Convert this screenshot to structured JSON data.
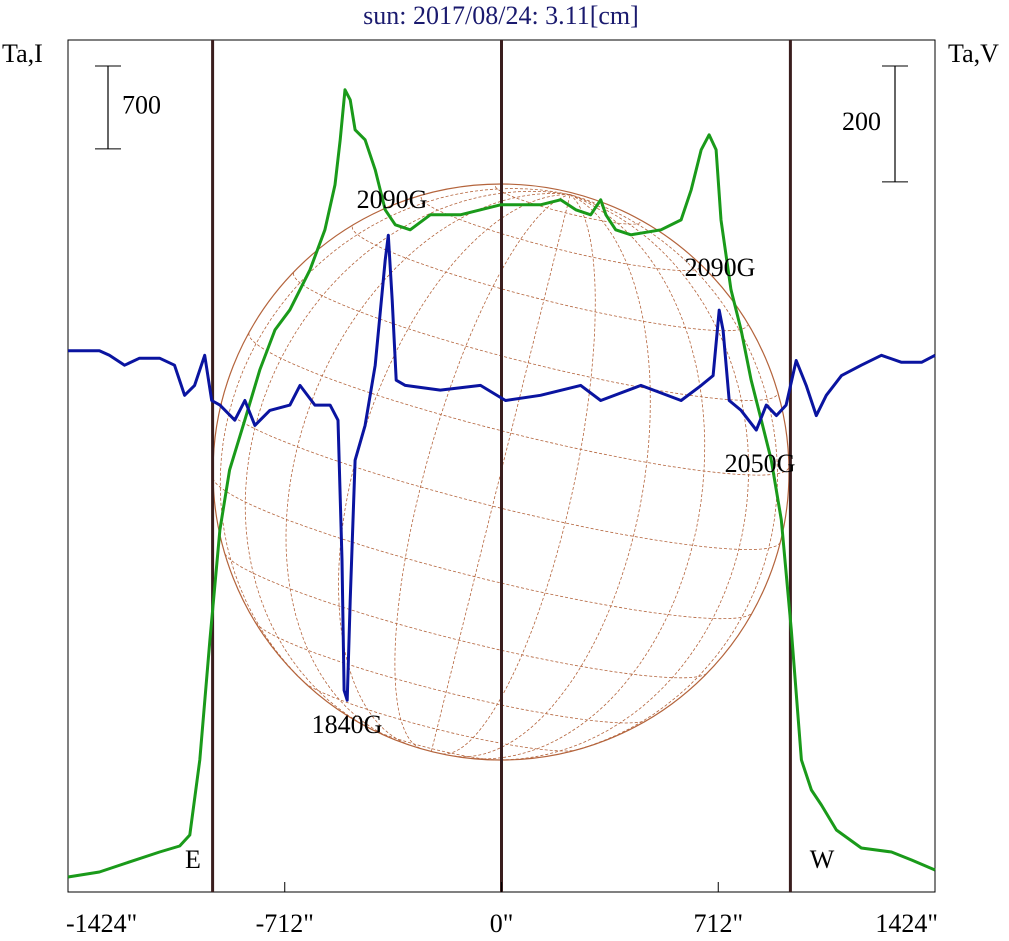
{
  "chart_data": {
    "type": "line",
    "title": "sun: 2017/08/24: 3.11[cm]",
    "ylabel": "Ta,I",
    "y2label": "Ta,V",
    "xlim": [
      -1424,
      1424
    ],
    "xticks": [
      {
        "value": -1424,
        "label": "-1424\""
      },
      {
        "value": -712,
        "label": "-712\""
      },
      {
        "value": 0,
        "label": "0\""
      },
      {
        "value": 712,
        "label": "712\""
      },
      {
        "value": 1424,
        "label": "1424\""
      }
    ],
    "ylim": [
      0,
      7200
    ],
    "y2lim": [
      -870,
      600
    ],
    "vlines": [
      -949,
      0,
      949
    ],
    "scale_bars": [
      {
        "value": 700,
        "axis": "y"
      },
      {
        "value": 200,
        "axis": "y2"
      }
    ],
    "annotations": [
      "2090G",
      "2090G",
      "2050G",
      "1840G",
      "E",
      "W"
    ],
    "series": [
      {
        "color": "#1a9a1a",
        "axis": "y",
        "x": [
          -1424,
          -1321,
          -1222,
          -1123,
          -1057,
          -1024,
          -991,
          -958,
          -925,
          -893,
          -843,
          -794,
          -744,
          -695,
          -629,
          -580,
          -547,
          -530,
          -514,
          -497,
          -481,
          -448,
          -415,
          -382,
          -349,
          -300,
          -234,
          -135,
          -69,
          -3,
          63,
          128,
          194,
          244,
          293,
          326,
          343,
          375,
          425,
          524,
          590,
          623,
          656,
          682,
          705,
          721,
          754,
          787,
          820,
          853,
          886,
          919,
          952,
          985,
          1018,
          1051,
          1100,
          1182,
          1281,
          1347,
          1424
        ],
        "values": [
          127,
          169,
          254,
          338,
          389,
          482,
          1116,
          2130,
          3060,
          3567,
          3990,
          4412,
          4750,
          4920,
          5258,
          5596,
          5976,
          6357,
          6779,
          6695,
          6441,
          6357,
          6103,
          5765,
          5638,
          5596,
          5723,
          5723,
          5765,
          5807,
          5807,
          5807,
          5850,
          5765,
          5723,
          5850,
          5723,
          5596,
          5554,
          5596,
          5680,
          5934,
          6272,
          6399,
          6272,
          5680,
          5089,
          4750,
          4328,
          3990,
          3652,
          3145,
          2215,
          1116,
          862,
          735,
          524,
          372,
          338,
          270,
          186
        ]
      },
      {
        "color": "#0a14a0",
        "axis": "y2",
        "x": [
          -1424,
          -1321,
          -1288,
          -1238,
          -1189,
          -1123,
          -1074,
          -1041,
          -1008,
          -975,
          -952,
          -925,
          -876,
          -843,
          -810,
          -761,
          -695,
          -662,
          -613,
          -563,
          -537,
          -524,
          -517,
          -507,
          -497,
          -481,
          -448,
          -415,
          -382,
          -372,
          -359,
          -346,
          -316,
          -201,
          -69,
          13,
          128,
          260,
          326,
          458,
          590,
          656,
          695,
          715,
          728,
          748,
          787,
          837,
          870,
          903,
          935,
          968,
          1001,
          1034,
          1067,
          1117,
          1182,
          1248,
          1314,
          1380,
          1424
        ],
        "values": [
          64,
          64,
          56,
          39,
          51,
          51,
          39,
          -13,
          4,
          56,
          -22,
          -30,
          -56,
          -22,
          -65,
          -39,
          -30,
          4,
          -30,
          -30,
          -56,
          -297,
          -522,
          -539,
          -367,
          -125,
          -65,
          39,
          220,
          263,
          151,
          13,
          4,
          -4,
          4,
          -22,
          -13,
          4,
          -22,
          4,
          -22,
          4,
          21,
          134,
          99,
          -22,
          -39,
          -73,
          -30,
          -48,
          -30,
          47,
          4,
          -48,
          -13,
          21,
          39,
          56,
          44,
          44,
          56
        ]
      }
    ]
  }
}
